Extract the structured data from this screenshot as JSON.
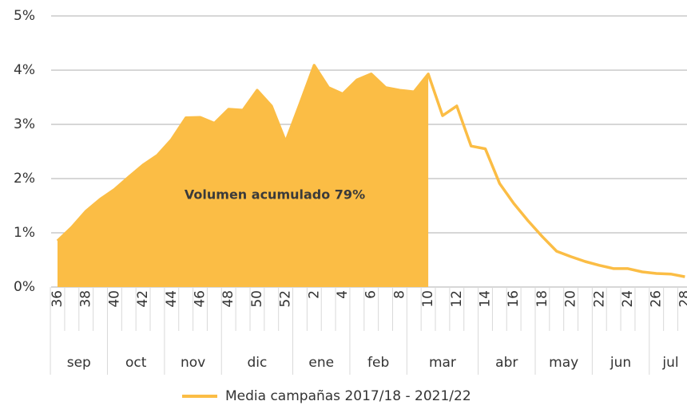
{
  "chart_data": {
    "type": "line",
    "categories": [
      "36",
      null,
      "38",
      null,
      "40",
      null,
      "42",
      null,
      "44",
      null,
      "46",
      null,
      "48",
      null,
      "50",
      null,
      "52",
      null,
      "2",
      null,
      "4",
      null,
      "6",
      null,
      "8",
      null,
      "10",
      null,
      "12",
      null,
      "14",
      null,
      "16",
      null,
      "18",
      null,
      "20",
      null,
      "22",
      null,
      "24",
      null,
      "26",
      null,
      "28"
    ],
    "months": [
      "sep",
      "oct",
      "nov",
      "dic",
      "ene",
      "feb",
      "mar",
      "abr",
      "may",
      "jun",
      "jul"
    ],
    "series": [
      {
        "name": "Media campañas 2017/18 - 2021/22",
        "color": "#fbbd45",
        "values": [
          0.85,
          1.1,
          1.4,
          1.62,
          1.8,
          2.03,
          2.25,
          2.43,
          2.72,
          3.12,
          3.13,
          3.02,
          3.28,
          3.26,
          3.63,
          3.34,
          2.68,
          3.38,
          4.09,
          3.68,
          3.56,
          3.82,
          3.93,
          3.68,
          3.63,
          3.6,
          3.93,
          3.16,
          3.34,
          2.6,
          2.55,
          1.91,
          1.54,
          1.22,
          0.93,
          0.66,
          0.56,
          0.47,
          0.4,
          0.34,
          0.34,
          0.28,
          0.25,
          0.24,
          0.19
        ]
      }
    ],
    "shaded_until": "10",
    "annotation": "Volumen acumulado 79%",
    "ylim": [
      0,
      5
    ],
    "yticks": [
      {
        "value": 0,
        "label": "0%"
      },
      {
        "value": 1,
        "label": "1%"
      },
      {
        "value": 2,
        "label": "2%"
      },
      {
        "value": 3,
        "label": "3%"
      },
      {
        "value": 4,
        "label": "4%"
      },
      {
        "value": 5,
        "label": "5%"
      }
    ],
    "grid": true,
    "legend": "bottom"
  }
}
